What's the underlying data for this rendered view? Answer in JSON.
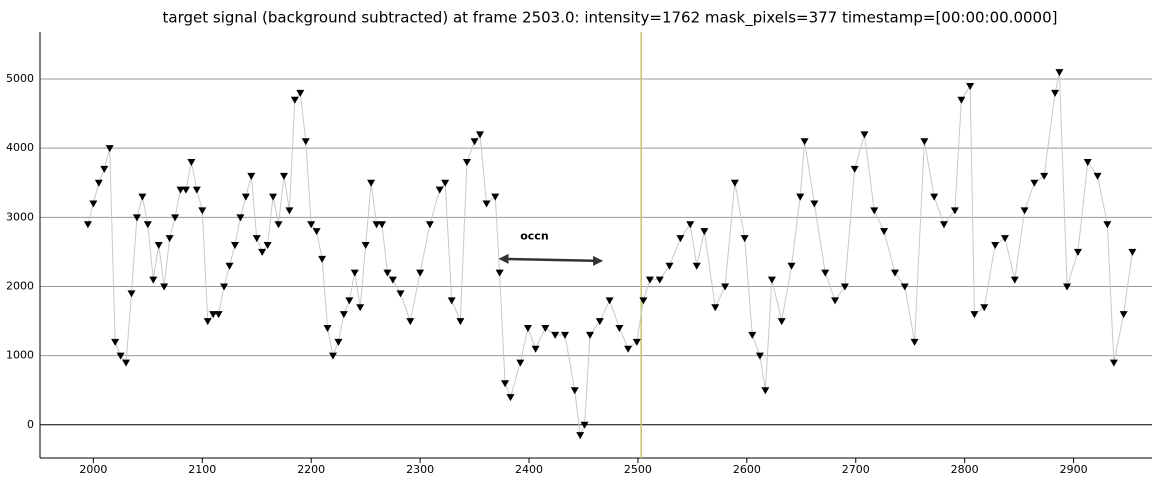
{
  "chart_data": {
    "type": "line",
    "title": "target signal (background subtracted) at frame 2503.0: intensity=1762 mask_pixels=377 timestamp=[00:00:00.0000]",
    "x": [
      1995,
      2000,
      2005,
      2010,
      2015,
      2020,
      2025,
      2030,
      2035,
      2040,
      2045,
      2050,
      2055,
      2060,
      2065,
      2070,
      2075,
      2080,
      2085,
      2090,
      2095,
      2100,
      2105,
      2110,
      2115,
      2120,
      2125,
      2130,
      2135,
      2140,
      2145,
      2150,
      2155,
      2160,
      2165,
      2170,
      2175,
      2180,
      2185,
      2190,
      2195,
      2200,
      2205,
      2210,
      2215,
      2220,
      2225,
      2230,
      2235,
      2240,
      2245,
      2250,
      2255,
      2260,
      2265,
      2270,
      2275,
      2282,
      2291,
      2300,
      2309,
      2318,
      2323,
      2329,
      2337,
      2343,
      2350,
      2355,
      2361,
      2369,
      2373,
      2378,
      2383,
      2392,
      2399,
      2406,
      2415,
      2424,
      2433,
      2442,
      2447,
      2451,
      2456,
      2465,
      2474,
      2483,
      2491,
      2499,
      2505,
      2511,
      2520,
      2529,
      2539,
      2548,
      2554,
      2561,
      2571,
      2580,
      2589,
      2598,
      2605,
      2612,
      2617,
      2623,
      2632,
      2641,
      2649,
      2653,
      2662,
      2672,
      2681,
      2690,
      2699,
      2708,
      2717,
      2726,
      2736,
      2745,
      2754,
      2763,
      2772,
      2781,
      2791,
      2797,
      2805,
      2809,
      2818,
      2828,
      2837,
      2846,
      2855,
      2864,
      2873,
      2883,
      2887,
      2894,
      2904,
      2913,
      2922,
      2931,
      2937,
      2946,
      2954
    ],
    "series": [
      {
        "name": "intensity",
        "color": "#000000",
        "line_color": "#c8c8c8",
        "values": [
          2900,
          3200,
          3500,
          3700,
          4000,
          1200,
          1000,
          900,
          1900,
          3000,
          3300,
          2900,
          2100,
          2600,
          2000,
          2700,
          3000,
          3400,
          3400,
          3800,
          3400,
          3100,
          1500,
          1600,
          1600,
          2000,
          2300,
          2600,
          3000,
          3300,
          3600,
          2700,
          2500,
          2600,
          3300,
          2900,
          3600,
          3100,
          4700,
          4800,
          4100,
          2900,
          2800,
          2400,
          1400,
          1000,
          1200,
          1600,
          1800,
          2200,
          1700,
          2600,
          3500,
          2900,
          2900,
          2200,
          2100,
          1900,
          1500,
          2200,
          2900,
          3400,
          3500,
          1800,
          1500,
          3800,
          4100,
          4200,
          3200,
          3300,
          2200,
          600,
          400,
          900,
          1400,
          1100,
          1400,
          1300,
          1300,
          500,
          -150,
          0,
          1300,
          1500,
          1800,
          1400,
          1100,
          1200,
          1800,
          2100,
          2100,
          2300,
          2700,
          2900,
          2300,
          2800,
          1700,
          2000,
          3500,
          2700,
          1300,
          1000,
          500,
          2100,
          1500,
          2300,
          3300,
          4100,
          3200,
          2200,
          1800,
          2000,
          3700,
          4200,
          3100,
          2800,
          2200,
          2000,
          1200,
          4100,
          3300,
          2900,
          3100,
          4700,
          4900,
          1600,
          1700,
          2600,
          2700,
          2100,
          3100,
          3500,
          3600,
          4800,
          5100,
          2000,
          2500,
          3800,
          3600,
          2900,
          900,
          1600,
          2500
        ]
      }
    ],
    "xlim": [
      1951,
      2972
    ],
    "ylim": [
      -480,
      5680
    ],
    "xticks": [
      2000,
      2100,
      2200,
      2300,
      2400,
      2500,
      2600,
      2700,
      2800,
      2900
    ],
    "yticks": [
      0,
      1000,
      2000,
      3000,
      4000,
      5000
    ],
    "grid": true,
    "marker_x": 2503,
    "marker_color": "#c8c86e",
    "annotation": {
      "text": "occn",
      "x": 2405,
      "y": 2720,
      "arrow_x": [
        2372,
        2468
      ],
      "arrow_y": 2400
    }
  }
}
